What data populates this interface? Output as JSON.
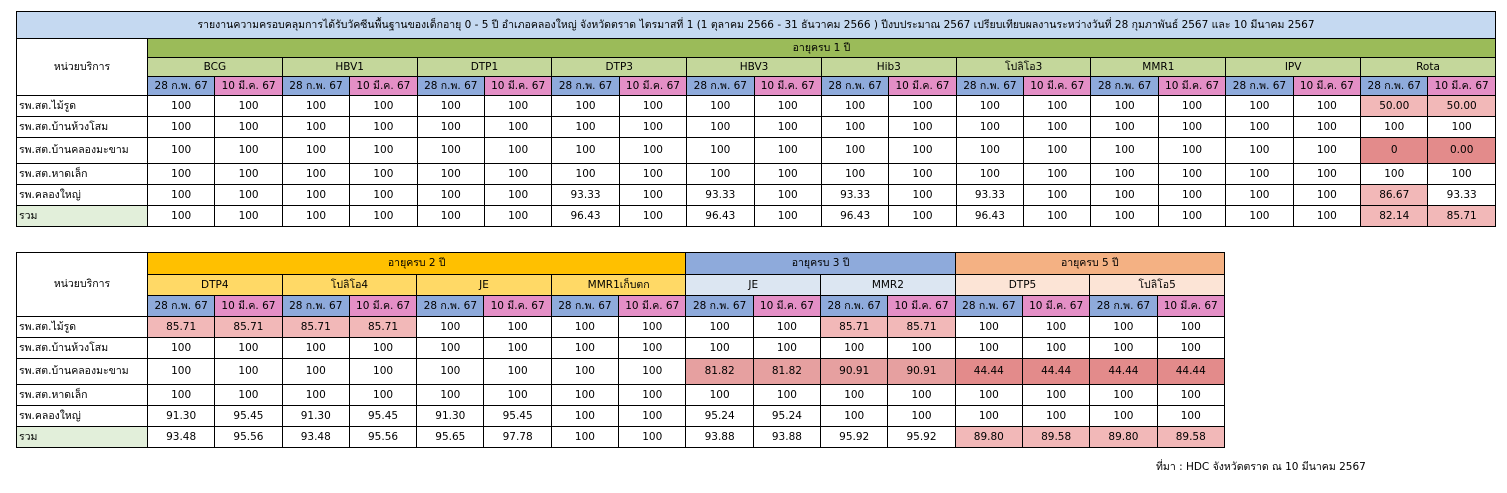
{
  "title": "รายงานความครอบคลุมการได้รับวัคซีนพื้นฐานของเด็กอายุ 0 - 5 ปี อำเภอคลองใหญ่ จังหวัดตราด ไตรมาสที่ 1 (1 ตุลาคม 2566 - 31 ธันวาคม 2566 ) ปีงบประมาณ 2567  เปรียบเทียบผลงานระหว่างวันที่ 28 กุมภาพันธ์ 2567 และ 10 มีนาคม 2567",
  "unit_header": "หน่วยบริการ",
  "date1": "28 ก.พ. 67",
  "date2": "10 มี.ค. 67",
  "table1": {
    "age_group": "อายุครบ 1 ปี",
    "vaccines": [
      "BCG",
      "HBV1",
      "DTP1",
      "DTP3",
      "HBV3",
      "Hib3",
      "โปลิโอ3",
      "MMR1",
      "IPV",
      "Rota"
    ],
    "rows": [
      {
        "unit": "รพ.สต.ไม้รูด",
        "values": [
          "100",
          "100",
          "100",
          "100",
          "100",
          "100",
          "100",
          "100",
          "100",
          "100",
          "100",
          "100",
          "100",
          "100",
          "100",
          "100",
          "100",
          "100",
          "50.00",
          "50.00"
        ]
      },
      {
        "unit": "รพ.สต.บ้านห้วงโสม",
        "values": [
          "100",
          "100",
          "100",
          "100",
          "100",
          "100",
          "100",
          "100",
          "100",
          "100",
          "100",
          "100",
          "100",
          "100",
          "100",
          "100",
          "100",
          "100",
          "100",
          "100"
        ]
      },
      {
        "unit": "รพ.สต.บ้านคลองมะขาม",
        "values": [
          "100",
          "100",
          "100",
          "100",
          "100",
          "100",
          "100",
          "100",
          "100",
          "100",
          "100",
          "100",
          "100",
          "100",
          "100",
          "100",
          "100",
          "100",
          "0",
          "0.00"
        ]
      },
      {
        "unit": "รพ.สต.หาดเล็ก",
        "values": [
          "100",
          "100",
          "100",
          "100",
          "100",
          "100",
          "100",
          "100",
          "100",
          "100",
          "100",
          "100",
          "100",
          "100",
          "100",
          "100",
          "100",
          "100",
          "100",
          "100"
        ]
      },
      {
        "unit": "รพ.คลองใหญ่",
        "values": [
          "100",
          "100",
          "100",
          "100",
          "100",
          "100",
          "93.33",
          "100",
          "93.33",
          "100",
          "93.33",
          "100",
          "93.33",
          "100",
          "100",
          "100",
          "100",
          "100",
          "86.67",
          "93.33"
        ]
      },
      {
        "unit": "รวม",
        "values": [
          "100",
          "100",
          "100",
          "100",
          "100",
          "100",
          "96.43",
          "100",
          "96.43",
          "100",
          "96.43",
          "100",
          "96.43",
          "100",
          "100",
          "100",
          "100",
          "100",
          "82.14",
          "85.71"
        ]
      }
    ]
  },
  "table2": {
    "age_groups": [
      "อายุครบ 2 ปี",
      "อายุครบ 3 ปี",
      "อายุครบ 5 ปี"
    ],
    "vaccines": [
      "DTP4",
      "โปลิโอ4",
      "JE",
      "MMR1เก็บตก",
      "JE",
      "MMR2",
      "DTP5",
      "โปลิโอ5"
    ],
    "rows": [
      {
        "unit": "รพ.สต.ไม้รูด",
        "values": [
          "85.71",
          "85.71",
          "85.71",
          "85.71",
          "100",
          "100",
          "100",
          "100",
          "100",
          "100",
          "85.71",
          "85.71",
          "100",
          "100",
          "100",
          "100"
        ]
      },
      {
        "unit": "รพ.สต.บ้านห้วงโสม",
        "values": [
          "100",
          "100",
          "100",
          "100",
          "100",
          "100",
          "100",
          "100",
          "100",
          "100",
          "100",
          "100",
          "100",
          "100",
          "100",
          "100"
        ]
      },
      {
        "unit": "รพ.สต.บ้านคลองมะขาม",
        "values": [
          "100",
          "100",
          "100",
          "100",
          "100",
          "100",
          "100",
          "100",
          "81.82",
          "81.82",
          "90.91",
          "90.91",
          "44.44",
          "44.44",
          "44.44",
          "44.44"
        ]
      },
      {
        "unit": "รพ.สต.หาดเล็ก",
        "values": [
          "100",
          "100",
          "100",
          "100",
          "100",
          "100",
          "100",
          "100",
          "100",
          "100",
          "100",
          "100",
          "100",
          "100",
          "100",
          "100"
        ]
      },
      {
        "unit": "รพ.คลองใหญ่",
        "values": [
          "91.30",
          "95.45",
          "91.30",
          "95.45",
          "91.30",
          "95.45",
          "100",
          "100",
          "95.24",
          "95.24",
          "100",
          "100",
          "100",
          "100",
          "100",
          "100"
        ]
      },
      {
        "unit": "รวม",
        "values": [
          "93.48",
          "95.56",
          "93.48",
          "95.56",
          "95.65",
          "97.78",
          "100",
          "100",
          "93.88",
          "93.88",
          "95.92",
          "95.92",
          "89.80",
          "89.58",
          "89.80",
          "89.58"
        ]
      }
    ]
  },
  "source": "ที่มา : HDC จังหวัดตราด ณ 10 มีนาคม 2567",
  "colors": {
    "title_bg": "#c5d9f1",
    "age1_bg": "#9bbb59",
    "age2_bg": "#ffc000",
    "age3_bg": "#8eaadb",
    "age5_bg": "#f4b183",
    "date1_bg": "#8eaadb",
    "date2_bg": "#e48fc6",
    "total_bg": "#e2efda",
    "highlight_light": "#f2b8b8",
    "highlight_dark": "#e38b8b"
  }
}
